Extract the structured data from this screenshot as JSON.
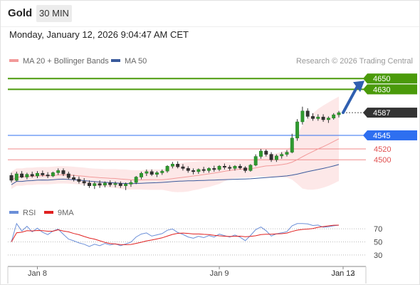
{
  "header": {
    "symbol": "Gold",
    "timeframe": "30 MIN"
  },
  "datetime": "Monday, January 12, 2026 9:04:47 AM CET",
  "source": "Research © 2026 Trading Central",
  "legend": [
    {
      "label": "MA 20 + Bollinger Bands",
      "color": "#f29a9a"
    },
    {
      "label": "MA 50",
      "color": "#3a5a9c"
    }
  ],
  "rsi_legend": [
    {
      "label": "RSI",
      "color": "#6b8fd8"
    },
    {
      "label": "9MA",
      "color": "#e02020"
    }
  ],
  "colors": {
    "resistance": "#4a9a0a",
    "pivot": "#2e6ff0",
    "support": "#e05050",
    "last": "#333333"
  },
  "chart_data": [
    {
      "type": "candlestick",
      "title": "",
      "x_ticks": [
        {
          "label": "Jan 8",
          "index": 5
        },
        {
          "label": "Jan 9",
          "index": 40
        },
        {
          "label": "Jan 12",
          "index": 74
        },
        {
          "label": "Jan 13",
          "index": 86
        }
      ],
      "ylim": [
        4420,
        4670
      ],
      "levels": [
        {
          "label": "4650",
          "value": 4650,
          "kind": "resistance",
          "line": "solid"
        },
        {
          "label": "4630",
          "value": 4630,
          "kind": "resistance",
          "line": "solid"
        },
        {
          "label": "4587",
          "value": 4587,
          "kind": "last",
          "line": "dotted"
        },
        {
          "label": "4545",
          "value": 4545,
          "kind": "pivot",
          "line": "solid"
        },
        {
          "label": "4520",
          "value": 4520,
          "kind": "support",
          "line": "solid"
        },
        {
          "label": "4500",
          "value": 4500,
          "kind": "support",
          "line": "solid"
        }
      ],
      "candles": [
        [
          4471,
          4476,
          4458,
          4462
        ],
        [
          4462,
          4478,
          4460,
          4474
        ],
        [
          4474,
          4479,
          4466,
          4468
        ],
        [
          4468,
          4476,
          4464,
          4473
        ],
        [
          4473,
          4478,
          4467,
          4470
        ],
        [
          4470,
          4479,
          4466,
          4475
        ],
        [
          4475,
          4480,
          4469,
          4472
        ],
        [
          4472,
          4477,
          4466,
          4470
        ],
        [
          4470,
          4478,
          4468,
          4476
        ],
        [
          4476,
          4484,
          4472,
          4480
        ],
        [
          4480,
          4484,
          4470,
          4474
        ],
        [
          4474,
          4478,
          4464,
          4467
        ],
        [
          4467,
          4472,
          4460,
          4464
        ],
        [
          4464,
          4469,
          4456,
          4460
        ],
        [
          4460,
          4466,
          4452,
          4457
        ],
        [
          4457,
          4462,
          4448,
          4452
        ],
        [
          4452,
          4460,
          4446,
          4456
        ],
        [
          4456,
          4462,
          4448,
          4453
        ],
        [
          4453,
          4460,
          4449,
          4457
        ],
        [
          4457,
          4462,
          4450,
          4454
        ],
        [
          4454,
          4460,
          4449,
          4456
        ],
        [
          4456,
          4460,
          4448,
          4452
        ],
        [
          4452,
          4458,
          4444,
          4455
        ],
        [
          4455,
          4462,
          4450,
          4458
        ],
        [
          4458,
          4470,
          4455,
          4468
        ],
        [
          4468,
          4478,
          4464,
          4475
        ],
        [
          4475,
          4482,
          4470,
          4478
        ],
        [
          4478,
          4482,
          4470,
          4473
        ],
        [
          4473,
          4479,
          4468,
          4476
        ],
        [
          4476,
          4482,
          4472,
          4479
        ],
        [
          4479,
          4490,
          4476,
          4488
        ],
        [
          4488,
          4496,
          4484,
          4492
        ],
        [
          4492,
          4497,
          4484,
          4487
        ],
        [
          4487,
          4492,
          4480,
          4484
        ],
        [
          4484,
          4488,
          4476,
          4480
        ],
        [
          4480,
          4484,
          4473,
          4478
        ],
        [
          4478,
          4484,
          4474,
          4482
        ],
        [
          4482,
          4487,
          4476,
          4480
        ],
        [
          4480,
          4486,
          4476,
          4484
        ],
        [
          4484,
          4489,
          4478,
          4482
        ],
        [
          4482,
          4490,
          4479,
          4488
        ],
        [
          4488,
          4493,
          4482,
          4486
        ],
        [
          4486,
          4490,
          4480,
          4484
        ],
        [
          4484,
          4490,
          4480,
          4488
        ],
        [
          4488,
          4492,
          4482,
          4485
        ],
        [
          4485,
          4488,
          4476,
          4480
        ],
        [
          4480,
          4492,
          4478,
          4490
        ],
        [
          4490,
          4510,
          4488,
          4506
        ],
        [
          4506,
          4520,
          4502,
          4516
        ],
        [
          4516,
          4519,
          4506,
          4510
        ],
        [
          4510,
          4514,
          4496,
          4500
        ],
        [
          4500,
          4510,
          4496,
          4507
        ],
        [
          4507,
          4514,
          4502,
          4510
        ],
        [
          4510,
          4518,
          4506,
          4514
        ],
        [
          4514,
          4548,
          4512,
          4540
        ],
        [
          4540,
          4575,
          4535,
          4570
        ],
        [
          4570,
          4598,
          4565,
          4590
        ],
        [
          4590,
          4595,
          4576,
          4580
        ],
        [
          4580,
          4586,
          4572,
          4576
        ],
        [
          4576,
          4584,
          4572,
          4579
        ],
        [
          4579,
          4584,
          4570,
          4574
        ],
        [
          4574,
          4580,
          4568,
          4577
        ],
        [
          4577,
          4586,
          4574,
          4583
        ],
        [
          4583,
          4590,
          4578,
          4587
        ]
      ],
      "ma20_bollinger": {
        "label": "MA 20 + Bollinger Bands"
      },
      "ma50": {
        "label": "MA 50"
      },
      "forecast_arrow": {
        "from": 4587,
        "to": 4650
      }
    },
    {
      "type": "line",
      "title": "RSI",
      "ylim": [
        20,
        80
      ],
      "y_ticks": [
        70,
        50,
        30
      ],
      "series": [
        {
          "name": "RSI",
          "color": "#6b8fd8"
        },
        {
          "name": "9MA",
          "color": "#e02020"
        }
      ]
    }
  ]
}
